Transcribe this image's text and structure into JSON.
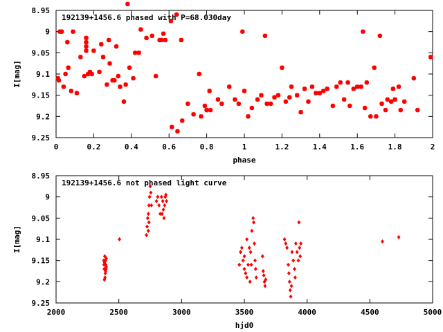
{
  "chart_data": [
    {
      "type": "scatter",
      "title": "192139+1456.6 phased with P=68.030day",
      "xlabel": "phase",
      "ylabel": "I[mag]",
      "xlim": [
        0,
        2
      ],
      "ylim": [
        9.25,
        8.95
      ],
      "y_inverted": true,
      "xticks": [
        0,
        0.2,
        0.4,
        0.6,
        0.8,
        1,
        1.2,
        1.4,
        1.6,
        1.8,
        2
      ],
      "xtick_labels": [
        "0",
        "0.2",
        "0.4",
        "0.6",
        "0.8",
        "1",
        "1.2",
        "1.4",
        "1.6",
        "1.8",
        "2"
      ],
      "yticks": [
        8.95,
        9,
        9.05,
        9.1,
        9.15,
        9.2,
        9.25
      ],
      "ytick_labels": [
        "8.95",
        "9",
        "9.05",
        "9.1",
        "9.15",
        "9.2",
        "9.25"
      ],
      "marker": "cross",
      "color": "#ff0000",
      "points": [
        [
          0.01,
          9.11
        ],
        [
          0.015,
          9.115
        ],
        [
          0.02,
          9.0
        ],
        [
          0.03,
          9.0
        ],
        [
          0.04,
          9.13
        ],
        [
          0.05,
          9.1
        ],
        [
          0.06,
          9.025
        ],
        [
          0.065,
          9.085
        ],
        [
          0.08,
          9.14
        ],
        [
          0.09,
          9.0
        ],
        [
          0.11,
          9.145
        ],
        [
          0.13,
          9.06
        ],
        [
          0.15,
          9.105
        ],
        [
          0.16,
          9.015
        ],
        [
          0.16,
          9.025
        ],
        [
          0.16,
          9.035
        ],
        [
          0.16,
          9.045
        ],
        [
          0.17,
          9.1
        ],
        [
          0.18,
          9.095
        ],
        [
          0.19,
          9.1
        ],
        [
          0.2,
          9.045
        ],
        [
          0.23,
          9.095
        ],
        [
          0.24,
          9.03
        ],
        [
          0.25,
          9.06
        ],
        [
          0.27,
          9.125
        ],
        [
          0.28,
          9.02
        ],
        [
          0.285,
          9.075
        ],
        [
          0.3,
          9.115
        ],
        [
          0.31,
          9.115
        ],
        [
          0.32,
          9.035
        ],
        [
          0.33,
          9.105
        ],
        [
          0.34,
          9.13
        ],
        [
          0.36,
          9.165
        ],
        [
          0.37,
          9.125
        ],
        [
          0.38,
          8.935
        ],
        [
          0.39,
          9.085
        ],
        [
          0.41,
          9.11
        ],
        [
          0.42,
          9.05
        ],
        [
          0.44,
          9.05
        ],
        [
          0.45,
          8.995
        ],
        [
          0.48,
          9.015
        ],
        [
          0.51,
          9.01
        ],
        [
          0.53,
          9.105
        ],
        [
          0.55,
          9.02
        ],
        [
          0.56,
          9.02
        ],
        [
          0.57,
          9.005
        ],
        [
          0.58,
          9.02
        ],
        [
          0.61,
          8.975
        ],
        [
          0.615,
          9.225
        ],
        [
          0.64,
          8.96
        ],
        [
          0.645,
          9.235
        ],
        [
          0.665,
          9.02
        ],
        [
          0.67,
          9.21
        ],
        [
          0.7,
          9.17
        ],
        [
          0.73,
          9.195
        ],
        [
          0.76,
          9.1
        ],
        [
          0.77,
          9.2
        ],
        [
          0.79,
          9.175
        ],
        [
          0.8,
          9.185
        ],
        [
          0.815,
          9.14
        ],
        [
          0.82,
          9.185
        ],
        [
          0.86,
          9.16
        ],
        [
          0.88,
          9.17
        ],
        [
          0.92,
          9.13
        ],
        [
          0.95,
          9.16
        ],
        [
          0.97,
          9.17
        ],
        [
          0.99,
          9.0
        ],
        [
          1.0,
          9.14
        ],
        [
          1.02,
          9.2
        ],
        [
          1.04,
          9.18
        ],
        [
          1.07,
          9.16
        ],
        [
          1.09,
          9.15
        ],
        [
          1.11,
          9.01
        ],
        [
          1.12,
          9.17
        ],
        [
          1.14,
          9.17
        ],
        [
          1.16,
          9.155
        ],
        [
          1.18,
          9.15
        ],
        [
          1.2,
          9.085
        ],
        [
          1.22,
          9.165
        ],
        [
          1.24,
          9.155
        ],
        [
          1.25,
          9.13
        ],
        [
          1.28,
          9.15
        ],
        [
          1.3,
          9.19
        ],
        [
          1.32,
          9.135
        ],
        [
          1.34,
          9.165
        ],
        [
          1.36,
          9.13
        ],
        [
          1.38,
          9.145
        ],
        [
          1.4,
          9.145
        ],
        [
          1.42,
          9.14
        ],
        [
          1.44,
          9.135
        ],
        [
          1.47,
          9.175
        ],
        [
          1.49,
          9.13
        ],
        [
          1.51,
          9.12
        ],
        [
          1.53,
          9.16
        ],
        [
          1.55,
          9.12
        ],
        [
          1.56,
          9.175
        ],
        [
          1.58,
          9.135
        ],
        [
          1.6,
          9.13
        ],
        [
          1.62,
          9.13
        ],
        [
          1.63,
          9.0
        ],
        [
          1.64,
          9.18
        ],
        [
          1.65,
          9.12
        ],
        [
          1.67,
          9.2
        ],
        [
          1.69,
          9.085
        ],
        [
          1.7,
          9.2
        ],
        [
          1.72,
          9.01
        ],
        [
          1.73,
          9.17
        ],
        [
          1.75,
          9.185
        ],
        [
          1.76,
          9.16
        ],
        [
          1.78,
          9.165
        ],
        [
          1.79,
          9.135
        ],
        [
          1.8,
          9.16
        ],
        [
          1.82,
          9.13
        ],
        [
          1.83,
          9.185
        ],
        [
          1.85,
          9.165
        ],
        [
          1.9,
          9.11
        ],
        [
          1.92,
          9.185
        ],
        [
          1.99,
          9.06
        ]
      ]
    },
    {
      "type": "scatter",
      "title": "192139+1456.6 not phased light curve",
      "xlabel": "hjd0",
      "ylabel": "I[mag]",
      "xlim": [
        2000,
        5000
      ],
      "ylim": [
        9.25,
        8.95
      ],
      "y_inverted": true,
      "xticks": [
        2000,
        2500,
        3000,
        3500,
        4000,
        4500,
        5000
      ],
      "xtick_labels": [
        "2000",
        "2500",
        "3000",
        "3500",
        "4000",
        "4500",
        "5000"
      ],
      "yticks": [
        8.95,
        9,
        9.05,
        9.1,
        9.15,
        9.2,
        9.25
      ],
      "ytick_labels": [
        "8.95",
        "9",
        "9.05",
        "9.1",
        "9.15",
        "9.2",
        "9.25"
      ],
      "marker": "diamond",
      "color": "#ff0000",
      "points": [
        [
          2380,
          9.15
        ],
        [
          2382,
          9.16
        ],
        [
          2384,
          9.17
        ],
        [
          2386,
          9.155
        ],
        [
          2388,
          9.14
        ],
        [
          2390,
          9.19
        ],
        [
          2392,
          9.18
        ],
        [
          2394,
          9.15
        ],
        [
          2396,
          9.16
        ],
        [
          2398,
          9.17
        ],
        [
          2400,
          9.145
        ],
        [
          2385,
          9.195
        ],
        [
          2395,
          9.175
        ],
        [
          2400,
          9.165
        ],
        [
          2505,
          9.1
        ],
        [
          2720,
          9.09
        ],
        [
          2725,
          9.07
        ],
        [
          2730,
          9.05
        ],
        [
          2735,
          9.04
        ],
        [
          2740,
          9.02
        ],
        [
          2745,
          9.0
        ],
        [
          2750,
          8.975
        ],
        [
          2755,
          8.99
        ],
        [
          2760,
          9.02
        ],
        [
          2740,
          9.06
        ],
        [
          2735,
          9.08
        ],
        [
          2800,
          9.01
        ],
        [
          2810,
          9.0
        ],
        [
          2820,
          9.02
        ],
        [
          2830,
          9.04
        ],
        [
          2840,
          9.0
        ],
        [
          2850,
          9.01
        ],
        [
          2855,
          9.03
        ],
        [
          2860,
          9.05
        ],
        [
          2865,
          9.02
        ],
        [
          2870,
          9.0
        ],
        [
          2875,
          8.995
        ],
        [
          2880,
          9.01
        ],
        [
          2845,
          9.04
        ],
        [
          3460,
          9.16
        ],
        [
          3470,
          9.13
        ],
        [
          3480,
          9.12
        ],
        [
          3490,
          9.15
        ],
        [
          3500,
          9.14
        ],
        [
          3510,
          9.18
        ],
        [
          3520,
          9.1
        ],
        [
          3530,
          9.16
        ],
        [
          3540,
          9.12
        ],
        [
          3550,
          9.13
        ],
        [
          3560,
          9.08
        ],
        [
          3570,
          9.05
        ],
        [
          3575,
          9.06
        ],
        [
          3580,
          9.11
        ],
        [
          3585,
          9.15
        ],
        [
          3590,
          9.17
        ],
        [
          3595,
          9.19
        ],
        [
          3500,
          9.17
        ],
        [
          3520,
          9.19
        ],
        [
          3545,
          9.2
        ],
        [
          3555,
          9.16
        ],
        [
          3645,
          9.14
        ],
        [
          3650,
          9.175
        ],
        [
          3655,
          9.185
        ],
        [
          3660,
          9.2
        ],
        [
          3665,
          9.21
        ],
        [
          3670,
          9.195
        ],
        [
          3820,
          9.1
        ],
        [
          3830,
          9.11
        ],
        [
          3840,
          9.12
        ],
        [
          3850,
          9.16
        ],
        [
          3855,
          9.18
        ],
        [
          3860,
          9.2
        ],
        [
          3865,
          9.22
        ],
        [
          3870,
          9.235
        ],
        [
          3875,
          9.21
        ],
        [
          3880,
          9.13
        ],
        [
          3890,
          9.15
        ],
        [
          3900,
          9.17
        ],
        [
          3905,
          9.19
        ],
        [
          3910,
          9.11
        ],
        [
          3920,
          9.13
        ],
        [
          3930,
          9.15
        ],
        [
          3935,
          9.06
        ],
        [
          3940,
          9.12
        ],
        [
          3945,
          9.14
        ],
        [
          3950,
          9.11
        ],
        [
          4600,
          9.105
        ],
        [
          4730,
          9.095
        ]
      ]
    }
  ]
}
